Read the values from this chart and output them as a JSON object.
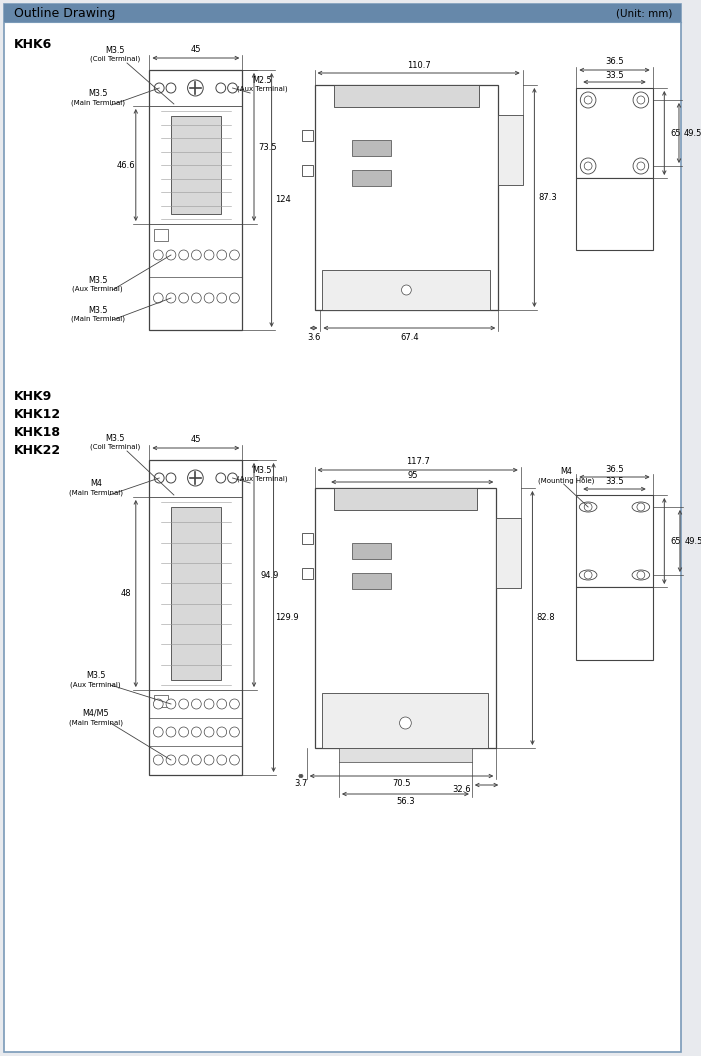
{
  "title": "Outline Drawing",
  "unit": "(Unit: mm)",
  "bg_color": "#e8eaee",
  "border_color": "#7a9ab8",
  "page_bg": "#ffffff",
  "line_color": "#444444",
  "dim_color": "#444444",
  "header_bar_color": "#6688aa",
  "section1_label": "KHK6",
  "section2_label": "KHK9\nKHK12\nKHK18\nKHK22",
  "khk6_dims": {
    "front_w": "45",
    "front_h_body": "73.5",
    "front_h_total": "124",
    "front_h_left": "46.6",
    "side_w_total": "110.7",
    "side_w_bottom": "67.4",
    "side_offset": "3.6",
    "side_h": "87.3",
    "right_w_outer": "36.5",
    "right_w_inner": "33.5",
    "right_h_outer": "65",
    "right_h_inner": "49.5"
  },
  "khk9_dims": {
    "front_w": "45",
    "front_h_body": "94.9",
    "front_h_total": "129.9",
    "front_h_left": "48",
    "side_w_total": "117.7",
    "side_w_inner": "95",
    "side_w_bottom": "70.5",
    "side_w_inner_bottom": "56.3",
    "side_offset": "3.7",
    "side_offset_inner": "32.6",
    "side_h": "82.8",
    "right_w_outer": "36.5",
    "right_w_inner": "33.5",
    "right_h_outer": "65",
    "right_h_inner": "49.5"
  }
}
